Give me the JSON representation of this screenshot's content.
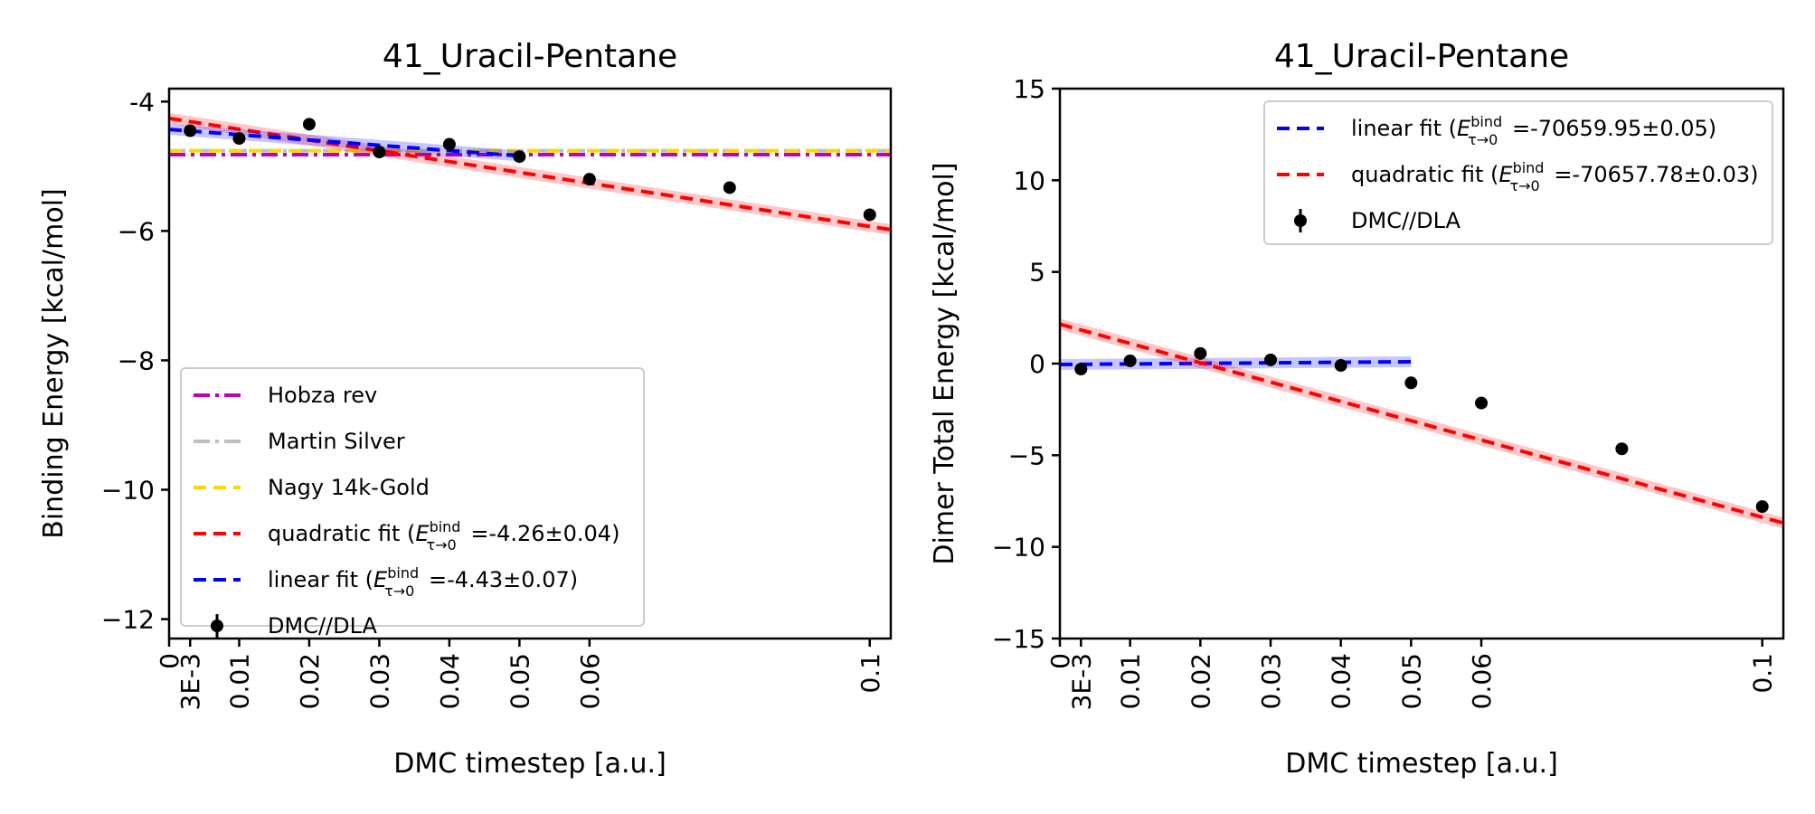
{
  "chart_data": [
    {
      "type": "scatter",
      "title": "41_Uracil-Pentane",
      "xlabel": "DMC timestep [a.u.]",
      "ylabel": "Binding Energy [kcal/mol]",
      "xlim": [
        0,
        0.103
      ],
      "ylim": [
        -12.3,
        -3.8
      ],
      "xticks": [
        0,
        0.003,
        0.01,
        0.02,
        0.03,
        0.04,
        0.05,
        0.06,
        0.1
      ],
      "xtick_labels": [
        "0",
        "3E-3",
        "0.01",
        "0.02",
        "0.03",
        "0.04",
        "0.05",
        "0.06",
        "0.1"
      ],
      "yticks": [
        -4,
        -6,
        -8,
        -10,
        -12
      ],
      "ytick_labels": [
        "-4",
        "−6",
        "−8",
        "−10",
        "−12"
      ],
      "legend_position": "lower-left",
      "reference_lines": [
        {
          "label": "Hobza rev",
          "y": -4.82,
          "color": "#bf00bf",
          "style": "dashdot"
        },
        {
          "label": "Martin Silver",
          "y": -4.76,
          "color": "#bfbfbf",
          "style": "dashdot"
        },
        {
          "label": "Nagy 14k-Gold",
          "y": -4.76,
          "color": "#ffd700",
          "style": "dashed"
        }
      ],
      "fits": [
        {
          "label_prefix": "quadratic fit (",
          "label_sym": "E",
          "label_sup": "bind",
          "label_sub": "τ→0",
          "label_value": " =-4.26±0.04)",
          "color": "#ff0000",
          "x": [
            0,
            0.103
          ],
          "y": [
            -4.26,
            -5.98
          ]
        },
        {
          "label_prefix": "linear fit (",
          "label_sym": "E",
          "label_sup": "bind",
          "label_sub": "τ→0",
          "label_value": " =-4.43±0.07)",
          "color": "#0000ff",
          "x": [
            0,
            0.05
          ],
          "y": [
            -4.43,
            -4.84
          ]
        }
      ],
      "points": {
        "label": "DMC//DLA",
        "x": [
          0.003,
          0.01,
          0.02,
          0.03,
          0.04,
          0.05,
          0.06,
          0.08,
          0.1
        ],
        "y": [
          -4.45,
          -4.57,
          -4.35,
          -4.78,
          -4.66,
          -4.85,
          -5.2,
          -5.33,
          -5.75
        ]
      }
    },
    {
      "type": "scatter",
      "title": "41_Uracil-Pentane",
      "xlabel": "DMC timestep [a.u.]",
      "ylabel": "Dimer Total Energy [kcal/mol]",
      "xlim": [
        0,
        0.103
      ],
      "ylim": [
        -15,
        15
      ],
      "xticks": [
        0,
        0.003,
        0.01,
        0.02,
        0.03,
        0.04,
        0.05,
        0.06,
        0.1
      ],
      "xtick_labels": [
        "0",
        "3E-3",
        "0.01",
        "0.02",
        "0.03",
        "0.04",
        "0.05",
        "0.06",
        "0.1"
      ],
      "yticks": [
        15,
        10,
        5,
        0,
        -5,
        -10,
        -15
      ],
      "ytick_labels": [
        "15",
        "10",
        "5",
        "0",
        "−5",
        "−10",
        "−15"
      ],
      "legend_position": "upper-right",
      "reference_lines": [],
      "fits": [
        {
          "label_prefix": "linear fit (",
          "label_sym": "E",
          "label_sup": "bind",
          "label_sub": "τ→0",
          "label_value": " =-70659.95±0.05)",
          "color": "#0000ff",
          "x": [
            0,
            0.05
          ],
          "y": [
            -0.05,
            0.1
          ]
        },
        {
          "label_prefix": "quadratic fit (",
          "label_sym": "E",
          "label_sup": "bind",
          "label_sub": "τ→0",
          "label_value": " =-70657.78±0.03)",
          "color": "#ff0000",
          "x": [
            0,
            0.103
          ],
          "y": [
            2.15,
            -8.7
          ]
        }
      ],
      "points": {
        "label": "DMC//DLA",
        "x": [
          0.003,
          0.01,
          0.02,
          0.03,
          0.04,
          0.05,
          0.06,
          0.08,
          0.1
        ],
        "y": [
          -0.3,
          0.15,
          0.55,
          0.2,
          -0.1,
          -1.05,
          -2.15,
          -4.65,
          -7.8
        ]
      }
    }
  ]
}
